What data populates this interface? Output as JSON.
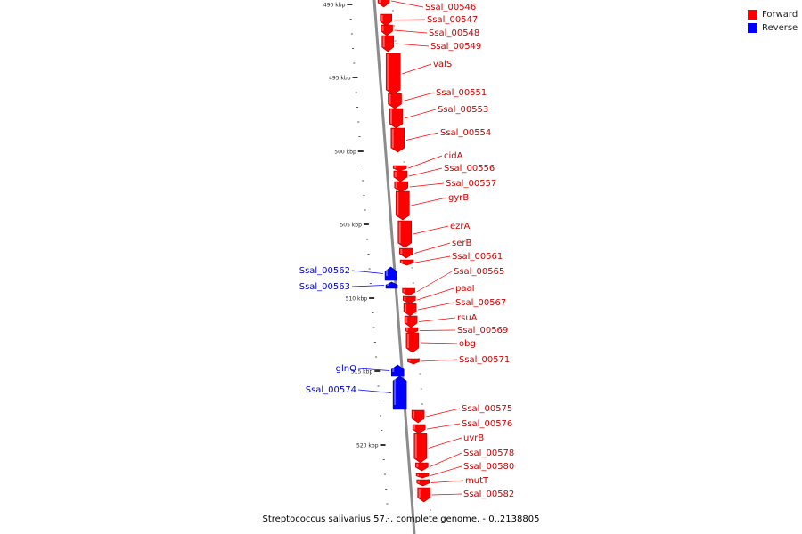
{
  "legend": {
    "forward_label": "Forward",
    "reverse_label": "Reverse",
    "forward_color": "#ff0000",
    "reverse_color": "#0000ff"
  },
  "caption": "Streptococcus salivarius 57.I, complete genome. - 0..2138805",
  "ruler": {
    "labels": [
      "490 kbp",
      "495 kbp",
      "500 kbp",
      "505 kbp",
      "510 kbp",
      "515 kbp",
      "520 kbp"
    ]
  },
  "genes": [
    {
      "name": "Ssal_00546",
      "strand": "forward"
    },
    {
      "name": "Ssal_00547",
      "strand": "forward"
    },
    {
      "name": "Ssal_00548",
      "strand": "forward"
    },
    {
      "name": "Ssal_00549",
      "strand": "forward"
    },
    {
      "name": "valS",
      "strand": "forward"
    },
    {
      "name": "Ssal_00551",
      "strand": "forward"
    },
    {
      "name": "Ssal_00553",
      "strand": "forward"
    },
    {
      "name": "Ssal_00554",
      "strand": "forward"
    },
    {
      "name": "cidA",
      "strand": "forward"
    },
    {
      "name": "Ssal_00556",
      "strand": "forward"
    },
    {
      "name": "Ssal_00557",
      "strand": "forward"
    },
    {
      "name": "gyrB",
      "strand": "forward"
    },
    {
      "name": "ezrA",
      "strand": "forward"
    },
    {
      "name": "serB",
      "strand": "forward"
    },
    {
      "name": "Ssal_00561",
      "strand": "forward"
    },
    {
      "name": "Ssal_00562",
      "strand": "reverse"
    },
    {
      "name": "Ssal_00563",
      "strand": "reverse"
    },
    {
      "name": "Ssal_00565",
      "strand": "forward"
    },
    {
      "name": "paaI",
      "strand": "forward"
    },
    {
      "name": "Ssal_00567",
      "strand": "forward"
    },
    {
      "name": "rsuA",
      "strand": "forward"
    },
    {
      "name": "Ssal_00569",
      "strand": "forward"
    },
    {
      "name": "obg",
      "strand": "forward"
    },
    {
      "name": "Ssal_00571",
      "strand": "forward"
    },
    {
      "name": "glnQ",
      "strand": "reverse"
    },
    {
      "name": "Ssal_00574",
      "strand": "reverse"
    },
    {
      "name": "Ssal_00575",
      "strand": "forward"
    },
    {
      "name": "Ssal_00576",
      "strand": "forward"
    },
    {
      "name": "uvrB",
      "strand": "forward"
    },
    {
      "name": "Ssal_00578",
      "strand": "forward"
    },
    {
      "name": "Ssal_00580",
      "strand": "forward"
    },
    {
      "name": "mutT",
      "strand": "forward"
    },
    {
      "name": "Ssal_00582",
      "strand": "forward"
    }
  ]
}
